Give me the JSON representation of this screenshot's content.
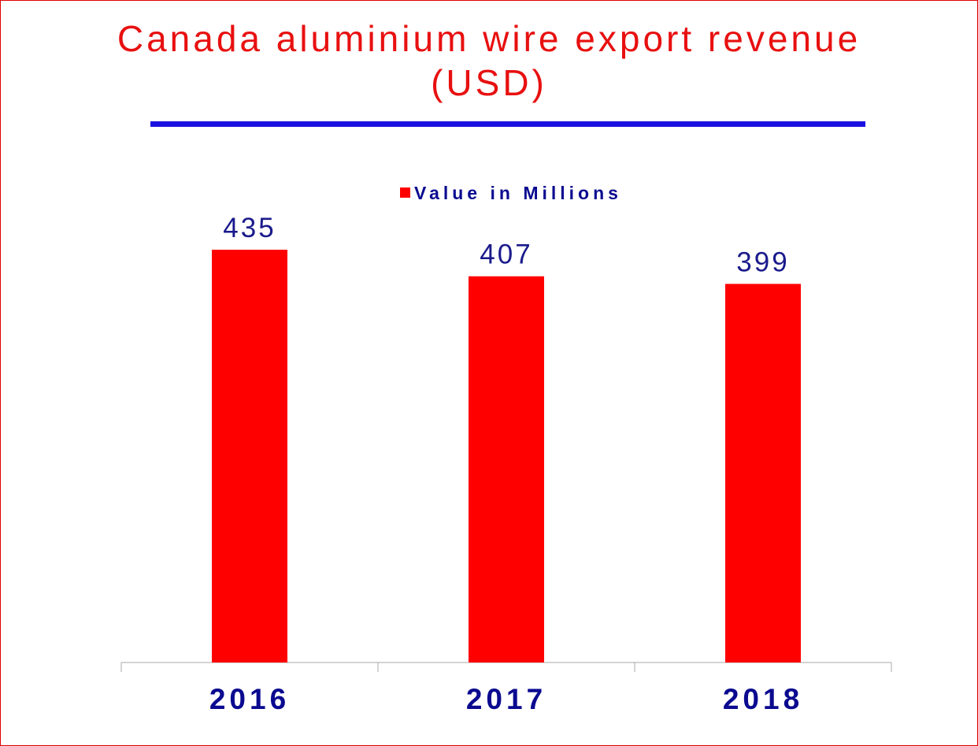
{
  "chart_data": {
    "type": "bar",
    "title": "Canada aluminium wire export revenue (USD)",
    "categories": [
      "2016",
      "2017",
      "2018"
    ],
    "series": [
      {
        "name": "Value in Millions",
        "values": [
          435,
          407,
          399
        ]
      }
    ],
    "data_labels": [
      "435",
      "407",
      "399"
    ],
    "xlabel": "",
    "ylabel": "",
    "legend_position": "top",
    "grid": false
  },
  "colors": {
    "title": "#e81010",
    "title_rule": "#1a10e0",
    "bar": "#ff0000",
    "data_label": "#1a1a8c",
    "category_label": "#0a0a90",
    "legend_text": "#0a0a90",
    "axis": "#aaaaaa",
    "border": "#e00000"
  }
}
